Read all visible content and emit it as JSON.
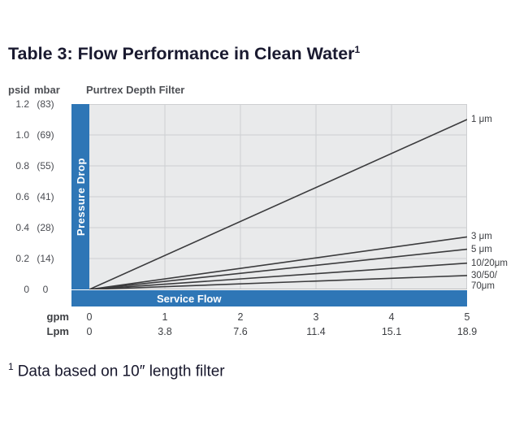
{
  "title": {
    "text": "Table 3: Flow Performance in Clean Water",
    "superscript": "1"
  },
  "footnote": {
    "superscript": "1",
    "text": "Data based on 10″ length filter"
  },
  "colors": {
    "accent_blue": "#2e76b6",
    "plot_background": "#e9eaeb",
    "gridline": "#cdcfd1",
    "axis_line": "#b9bbbd",
    "series_line": "#3b3b3d",
    "title_text": "#1a1a30",
    "chart_text": "#4e5055"
  },
  "chart_data": {
    "type": "line",
    "title": "Purtrex Depth Filter",
    "ylabel": "Pressure Drop",
    "xlabel": "Service Flow",
    "y_units": {
      "psid": "psid",
      "mbar": "mbar"
    },
    "x_units": {
      "gpm": "gpm",
      "lpm": "Lpm"
    },
    "xlim": [
      0,
      5
    ],
    "ylim": [
      0,
      1.2
    ],
    "y_ticks": {
      "psid": [
        "1.2",
        "1.0",
        "0.8",
        "0.6",
        "0.4",
        "0.2",
        "0"
      ],
      "mbar": [
        "(83)",
        "(69)",
        "(55)",
        "(41)",
        "(28)",
        "(14)",
        "0"
      ]
    },
    "x_ticks": {
      "gpm": [
        "0",
        "1",
        "2",
        "3",
        "4",
        "5"
      ],
      "lpm": [
        "0",
        "3.8",
        "7.6",
        "11.4",
        "15.1",
        "18.9"
      ]
    },
    "gridlines": {
      "y_psid": [
        0.2,
        0.4,
        0.6,
        0.8,
        1.0,
        1.2
      ],
      "x_gpm": [
        1,
        2,
        3,
        4
      ]
    },
    "grid": true,
    "legend_position": "right",
    "series": [
      {
        "name": "1-um",
        "label": "1 μm",
        "x_gpm": [
          0,
          5
        ],
        "y_psid": [
          0,
          1.1
        ]
      },
      {
        "name": "3-um",
        "label": "3 μm",
        "x_gpm": [
          0,
          5
        ],
        "y_psid": [
          0,
          0.34
        ]
      },
      {
        "name": "5-um",
        "label": "5 μm",
        "x_gpm": [
          0,
          5
        ],
        "y_psid": [
          0,
          0.26
        ]
      },
      {
        "name": "10-20-um",
        "label": "10/20μm",
        "x_gpm": [
          0,
          5
        ],
        "y_psid": [
          0,
          0.17
        ]
      },
      {
        "name": "30-50-70-um",
        "label": "30/50/\n70μm",
        "x_gpm": [
          0,
          5
        ],
        "y_psid": [
          0,
          0.09
        ]
      }
    ]
  }
}
